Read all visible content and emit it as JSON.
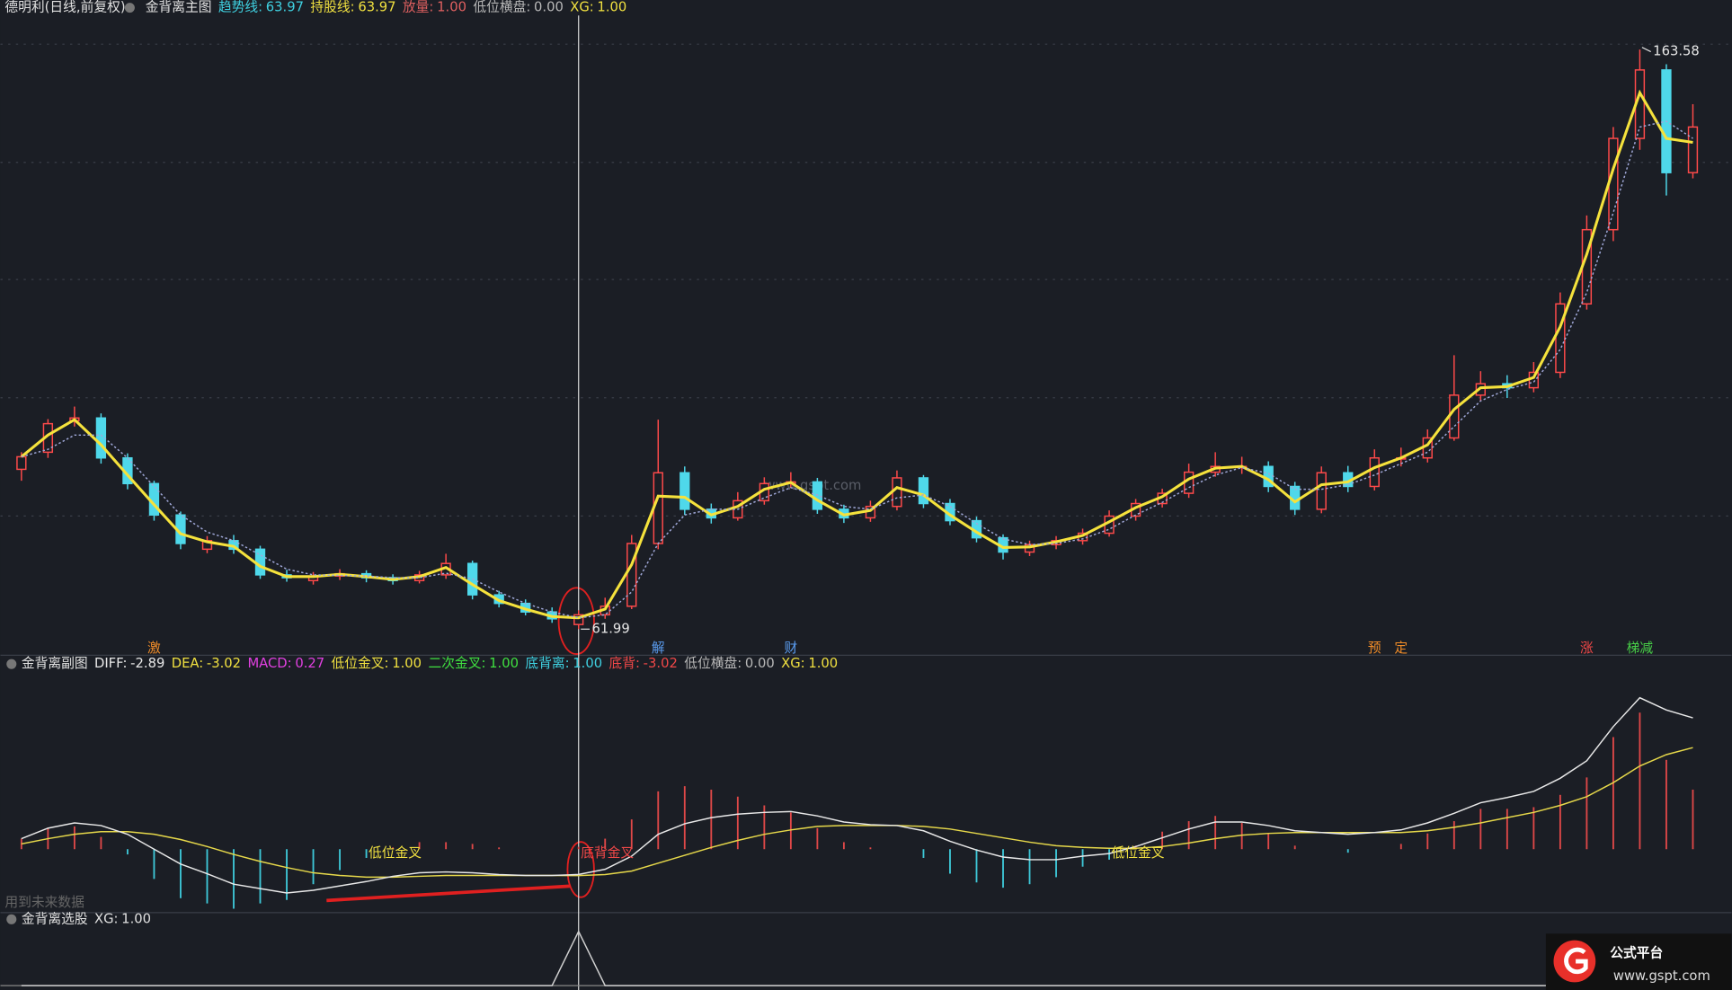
{
  "chart_data": [
    {
      "type": "candlestick",
      "title": "德明利(日线,前复权)",
      "indicator": "金背离主图",
      "legend": [
        {
          "label": "趋势线:",
          "value": "63.97",
          "color": "#3fd0e0"
        },
        {
          "label": "持股线:",
          "value": "63.97",
          "color": "#f0e040"
        },
        {
          "label": "放量:",
          "value": "1.00",
          "color": "#e06060"
        },
        {
          "label": "低位横盘:",
          "value": "0.00",
          "color": "#b8b8b8"
        },
        {
          "label": "XG:",
          "value": "1.00",
          "color": "#f0e040"
        }
      ],
      "open": [
        90,
        93,
        98.5,
        99,
        92,
        87.5,
        82,
        76,
        77.5,
        76,
        71.5,
        70.5,
        71.3,
        71.7,
        71,
        70.5,
        71.5,
        73.5,
        68,
        66.5,
        65,
        62.8,
        64.5,
        66,
        77,
        89.4,
        83,
        81.5,
        84.5,
        87.5,
        87.8,
        83,
        81.5,
        83.5,
        88.5,
        84,
        81,
        78,
        75.5,
        76.8,
        77.5,
        78.8,
        81.8,
        84,
        85.8,
        89.5,
        90.5,
        90.5,
        87,
        83,
        89.4,
        87,
        92,
        92,
        95.5,
        103,
        105,
        104.3,
        107,
        119,
        132,
        148,
        160,
        142
      ],
      "high": [
        93,
        98.8,
        101,
        99.8,
        92.8,
        88,
        82.6,
        78.3,
        78.5,
        76.6,
        72.4,
        72,
        72.5,
        72.3,
        71.6,
        72.2,
        75.2,
        74,
        68.7,
        67.2,
        65.8,
        65.3,
        67.5,
        78.5,
        98.7,
        90.5,
        84,
        86,
        88.6,
        89.5,
        88.5,
        83.8,
        84.5,
        89.8,
        89,
        84.8,
        81.7,
        78.6,
        77.5,
        78.3,
        79.6,
        82.8,
        84.8,
        86.6,
        91,
        93,
        92.2,
        91.4,
        87.8,
        90.5,
        90.6,
        93.5,
        93.8,
        97,
        110,
        107.2,
        106.5,
        108.8,
        121,
        134.5,
        150,
        163.58,
        161,
        154
      ],
      "low": [
        88,
        92,
        97.5,
        91,
        86.5,
        81,
        76,
        75.3,
        75.2,
        70.8,
        70.3,
        69.8,
        70.6,
        70.2,
        69.8,
        70,
        70.8,
        67.2,
        65.8,
        64.4,
        63.1,
        61.99,
        63.8,
        65.5,
        76,
        82,
        80.5,
        81,
        83.8,
        86.8,
        82.2,
        80.6,
        80.8,
        82.8,
        83.2,
        80.2,
        77.2,
        74.2,
        74.8,
        76,
        76.8,
        78.2,
        81,
        83.3,
        85,
        88.7,
        89.2,
        86,
        82,
        82.3,
        86,
        86.3,
        90.5,
        91.2,
        95,
        102,
        102.5,
        103.5,
        106,
        118,
        130,
        146,
        138,
        141
      ],
      "close": [
        92.2,
        98,
        99,
        92,
        87.5,
        82,
        77,
        77.5,
        76,
        71.5,
        71,
        71.3,
        71.7,
        71,
        70.5,
        71.5,
        73.5,
        68,
        66.5,
        65,
        63.8,
        64.5,
        66,
        77,
        89.4,
        83,
        81.5,
        84.5,
        87.5,
        87.8,
        83,
        81.5,
        83.5,
        88.5,
        84,
        81,
        78,
        75.5,
        76.8,
        77.5,
        78.8,
        81.8,
        84,
        85.8,
        89.5,
        90.5,
        90.5,
        87,
        83,
        89.4,
        87,
        92,
        92,
        95.5,
        103,
        105,
        104.3,
        107,
        119,
        132,
        148,
        160,
        142,
        150
      ],
      "up_color": "#ff4a4a",
      "down_color": "#4fd8ea",
      "lines": [
        {
          "color": "#f5e23c",
          "values": [
            92.2,
            96,
            98.7,
            94.3,
            89,
            83.8,
            78.7,
            77.3,
            76.5,
            73,
            71.2,
            71.2,
            71.6,
            71.2,
            70.7,
            71.2,
            72.8,
            69.8,
            67,
            65.5,
            64.2,
            63.97,
            65.5,
            73.3,
            85.3,
            85.1,
            82,
            83.5,
            86.5,
            87.7,
            84.6,
            82,
            82.8,
            86.8,
            85.5,
            82,
            79,
            76.3,
            76.4,
            77.3,
            78.4,
            80.8,
            83.3,
            85.2,
            88.3,
            90.2,
            90.5,
            88.2,
            84.3,
            87.3,
            87.8,
            90.3,
            92,
            94.3,
            100.5,
            104.3,
            104.5,
            106.1,
            115,
            127.7,
            142.7,
            156,
            148,
            147.3
          ]
        },
        {
          "color": "#a0a8d8",
          "dashed": true,
          "values": [
            92.2,
            93.5,
            96,
            96,
            92,
            87,
            82,
            79,
            77.5,
            75,
            72.5,
            71.5,
            71.4,
            71.3,
            71,
            71,
            71.8,
            70.8,
            68.5,
            66.5,
            65,
            63.97,
            64.5,
            68.5,
            77,
            82,
            83,
            83,
            85,
            86.8,
            85.5,
            83.5,
            83,
            85,
            85.5,
            83.5,
            80.5,
            77.8,
            76.8,
            77,
            77.8,
            79.5,
            82,
            84.2,
            86.8,
            89,
            90.3,
            89.3,
            86.5,
            86.5,
            87.3,
            89,
            91,
            93,
            97.5,
            102,
            104,
            105.3,
            111,
            121,
            135,
            150,
            151,
            148
          ]
        }
      ],
      "markers": [
        {
          "text": "激",
          "index": 5,
          "color": "#f08c28"
        },
        {
          "text": "解",
          "index": 24,
          "color": "#5a9cf0"
        },
        {
          "text": "财",
          "index": 29,
          "color": "#5a9cf0"
        },
        {
          "text": "预",
          "index": 51,
          "color": "#f08c28"
        },
        {
          "text": "定",
          "index": 52,
          "color": "#f08c28"
        },
        {
          "text": "涨",
          "index": 59,
          "color": "#f04848"
        },
        {
          "text": "梯减",
          "index": 61,
          "color": "#48d048"
        }
      ],
      "ylim": [
        58,
        168
      ],
      "cursor": 21
    },
    {
      "type": "macd",
      "title": "金背离副图",
      "legend": [
        {
          "label": "DIFF:",
          "value": "-2.89",
          "color": "#e8e8e8"
        },
        {
          "label": "DEA:",
          "value": "-3.02",
          "color": "#f0e040"
        },
        {
          "label": "MACD:",
          "value": "0.27",
          "color": "#e040e0"
        },
        {
          "label": "低位金叉:",
          "value": "1.00",
          "color": "#f0e040"
        },
        {
          "label": "二次金叉:",
          "value": "1.00",
          "color": "#40e040"
        },
        {
          "label": "底背离:",
          "value": "1.00",
          "color": "#3fd0e0"
        },
        {
          "label": "底背:",
          "value": "-3.02",
          "color": "#f04848"
        },
        {
          "label": "低位横盘:",
          "value": "0.00",
          "color": "#b8b8b8"
        },
        {
          "label": "XG:",
          "value": "1.00",
          "color": "#f0e040"
        }
      ],
      "diff": {
        "color": "#e8e8e8",
        "values": [
          1.2,
          2.4,
          3.0,
          2.7,
          1.7,
          0,
          -1.7,
          -2.8,
          -4.0,
          -4.5,
          -5.0,
          -4.7,
          -4.2,
          -3.7,
          -3.1,
          -2.7,
          -2.6,
          -2.7,
          -2.9,
          -3.0,
          -3.0,
          -2.89,
          -2.3,
          -0.8,
          1.7,
          2.9,
          3.6,
          4.0,
          4.2,
          4.3,
          3.8,
          3.1,
          2.8,
          2.7,
          2.1,
          0.9,
          -0.1,
          -0.9,
          -1.2,
          -1.2,
          -0.8,
          -0.5,
          0.3,
          1.3,
          2.3,
          3.1,
          3.1,
          2.7,
          2.1,
          1.9,
          1.7,
          1.9,
          2.2,
          3.0,
          4.1,
          5.3,
          5.9,
          6.6,
          8.1,
          10.1,
          14.0,
          17.3,
          15.9,
          15.0
        ]
      },
      "dea": {
        "color": "#e6d84a",
        "values": [
          0.6,
          1.2,
          1.7,
          2.0,
          2.0,
          1.7,
          1.1,
          0.3,
          -0.6,
          -1.4,
          -2.1,
          -2.7,
          -3.0,
          -3.2,
          -3.2,
          -3.1,
          -3.0,
          -3.0,
          -3.0,
          -3.0,
          -3.0,
          -3.02,
          -2.9,
          -2.5,
          -1.6,
          -0.7,
          0.2,
          1.0,
          1.7,
          2.2,
          2.6,
          2.7,
          2.7,
          2.7,
          2.6,
          2.3,
          1.8,
          1.3,
          0.8,
          0.4,
          0.2,
          0.1,
          0.1,
          0.3,
          0.7,
          1.2,
          1.6,
          1.8,
          1.9,
          1.9,
          1.9,
          1.9,
          1.9,
          2.1,
          2.5,
          3.0,
          3.6,
          4.2,
          5.0,
          6.0,
          7.6,
          9.5,
          10.8,
          11.6
        ]
      },
      "macd": {
        "up_color": "#e04848",
        "down_color": "#3ec8d8",
        "values": [
          1.2,
          2.4,
          2.6,
          1.4,
          -0.6,
          -3.4,
          -5.6,
          -6.2,
          -6.8,
          -6.2,
          -5.8,
          -4.0,
          -2.4,
          -1.0,
          0.2,
          0.8,
          0.8,
          0.6,
          0.2,
          0,
          0,
          0.27,
          1.2,
          3.4,
          6.6,
          7.2,
          6.8,
          6.0,
          5.0,
          4.2,
          2.4,
          0.8,
          0.2,
          0,
          -1.0,
          -2.8,
          -3.8,
          -4.4,
          -4.0,
          -3.2,
          -2.0,
          -1.2,
          0.4,
          2.0,
          3.2,
          3.8,
          3.0,
          1.8,
          0.4,
          0,
          -0.4,
          0,
          0.6,
          1.8,
          3.2,
          4.6,
          4.6,
          4.8,
          6.2,
          8.2,
          12.8,
          15.6,
          10.2,
          6.8
        ]
      },
      "annotations": [
        {
          "text": "低位金叉",
          "index": 13,
          "color": "#f0e040"
        },
        {
          "text": "底背金叉",
          "index": 21,
          "color": "#f04848"
        },
        {
          "text": "低位金叉",
          "index": 41,
          "color": "#f0e040"
        }
      ],
      "note": "用到未来数据",
      "ylim": [
        -7,
        19
      ]
    },
    {
      "type": "line",
      "title": "金背离选股",
      "legend": [
        {
          "label": "XG:",
          "value": "1.00",
          "color": "#e0e0e0"
        }
      ],
      "color": "#d0d0d0",
      "values": [
        0,
        0,
        0,
        0,
        0,
        0,
        0,
        0,
        0,
        0,
        0,
        0,
        0,
        0,
        0,
        0,
        0,
        0,
        0,
        0,
        0,
        1,
        0,
        0,
        0,
        0,
        0,
        0,
        0,
        0,
        0,
        0,
        0,
        0,
        0,
        0,
        0,
        0,
        0,
        0,
        0,
        0,
        0,
        0,
        0,
        0,
        0,
        0,
        0,
        0,
        0,
        0,
        0,
        0,
        0,
        0,
        0,
        0,
        0,
        0,
        0,
        0,
        0,
        0
      ],
      "ylim": [
        0,
        1
      ]
    }
  ],
  "watermark": "www.gspt.com",
  "logo": {
    "name": "公式平台",
    "url": "www.gspt.com"
  }
}
